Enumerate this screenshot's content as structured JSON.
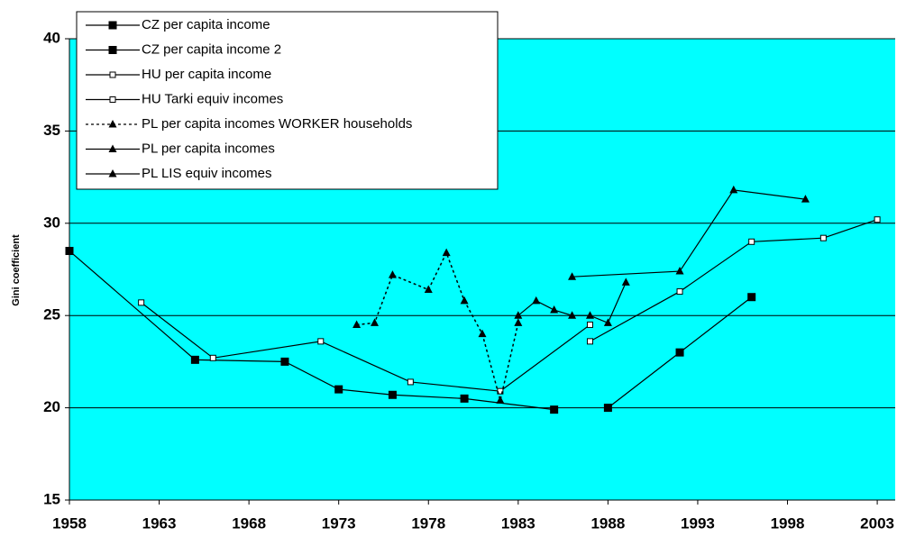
{
  "chart_data": {
    "type": "line",
    "y_label": "Gini coefficient",
    "xlim": [
      1958,
      2004
    ],
    "xticks": [
      1958,
      1963,
      1968,
      1973,
      1978,
      1983,
      1988,
      1993,
      1998,
      2003
    ],
    "ylim": [
      15,
      40
    ],
    "yticks": [
      15,
      20,
      25,
      30,
      35,
      40
    ],
    "grid": true,
    "background": "#00ffff",
    "series": [
      {
        "name": "CZ per capita income",
        "color": "#000000",
        "marker": "filled-square",
        "dash": false,
        "x": [
          1958,
          1965,
          1970,
          1973,
          1976,
          1980,
          1985
        ],
        "values": [
          28.5,
          22.6,
          22.5,
          21.0,
          20.7,
          20.5,
          19.9
        ]
      },
      {
        "name": "CZ per capita income 2",
        "color": "#000000",
        "marker": "filled-square",
        "dash": false,
        "x": [
          1988,
          1992,
          1996
        ],
        "values": [
          20.0,
          23.0,
          26.0
        ]
      },
      {
        "name": "HU per capita income",
        "color": "#000000",
        "marker": "open-square",
        "dash": false,
        "x": [
          1962,
          1966,
          1972,
          1977,
          1982,
          1987
        ],
        "values": [
          25.7,
          22.7,
          23.6,
          21.4,
          20.9,
          24.5
        ]
      },
      {
        "name": "HU Tarki equiv incomes",
        "color": "#000000",
        "marker": "open-square",
        "dash": false,
        "x": [
          1987,
          1992,
          1996,
          2000,
          2003
        ],
        "values": [
          23.6,
          26.3,
          29.0,
          29.2,
          30.2
        ]
      },
      {
        "name": "PL per capita incomes WORKER households",
        "color": "#000000",
        "marker": "triangle",
        "dash": true,
        "x": [
          1974,
          1975,
          1976,
          1978,
          1979,
          1980,
          1981,
          1982,
          1983
        ],
        "values": [
          24.5,
          24.6,
          27.2,
          26.4,
          28.4,
          25.8,
          24.0,
          20.4,
          24.6
        ]
      },
      {
        "name": "PL per capita incomes",
        "color": "#000000",
        "marker": "triangle",
        "dash": false,
        "x": [
          1983,
          1984,
          1985,
          1986,
          1987,
          1988,
          1989
        ],
        "values": [
          25.0,
          25.8,
          25.3,
          25.0,
          25.0,
          24.6,
          26.8
        ]
      },
      {
        "name": "PL LIS equiv incomes",
        "color": "#000000",
        "marker": "triangle",
        "dash": false,
        "x": [
          1986,
          1992,
          1995,
          1999
        ],
        "values": [
          27.1,
          27.4,
          31.8,
          31.3
        ]
      }
    ]
  }
}
